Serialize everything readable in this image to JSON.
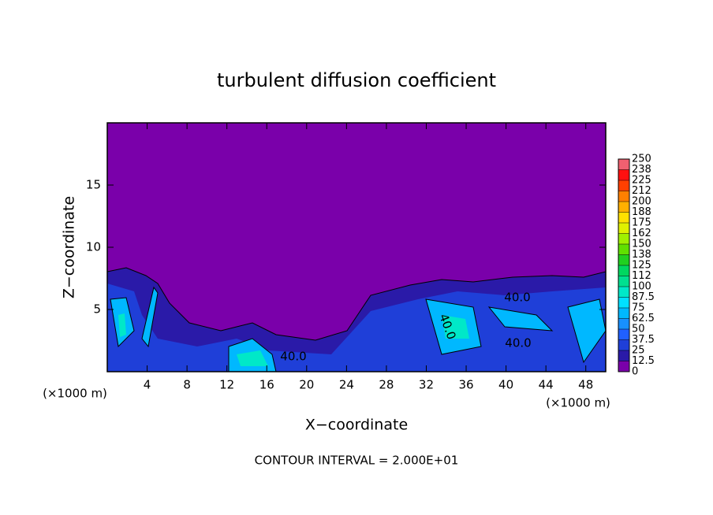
{
  "chart_data": {
    "type": "contour",
    "title": "turbulent diffusion coefficient",
    "x_label": "X−coordinate",
    "y_label": "Z−coordinate",
    "x_unit": "(×1000 m)",
    "y_unit": "(×1000 m)",
    "footer": "CONTOUR INTERVAL = 2.000E+01",
    "xlim": [
      0,
      50
    ],
    "xticks": [
      4,
      8,
      12,
      16,
      20,
      24,
      28,
      32,
      36,
      40,
      44,
      48
    ],
    "ylim": [
      0,
      20
    ],
    "yticks": [
      5,
      10,
      15
    ],
    "contour_labels": [
      "40.0",
      "40.0",
      "40.0",
      "40.0"
    ],
    "levels": [
      0,
      12.5,
      25,
      37.5,
      50,
      62.5,
      75,
      87.5,
      100,
      {
        "value": 112.5,
        "label": "112"
      },
      125,
      {
        "value": 137.5,
        "label": "138"
      },
      150,
      {
        "value": 162.5,
        "label": "162"
      },
      175,
      {
        "value": 187.5,
        "label": "188"
      },
      200,
      {
        "value": 212.5,
        "label": "212"
      },
      225,
      {
        "value": 237.5,
        "label": "238"
      },
      250
    ],
    "colors": [
      "#7a00aa",
      "#2a1aa8",
      "#1f3fd8",
      "#2060ff",
      "#1890ff",
      "#00b8ff",
      "#00e0ff",
      "#00e8c8",
      "#00e090",
      "#00d860",
      "#20d020",
      "#60e000",
      "#a0f000",
      "#e0f000",
      "#ffe000",
      "#ffb000",
      "#ff8000",
      "#ff4000",
      "#ff1010",
      "#f06070"
    ]
  }
}
